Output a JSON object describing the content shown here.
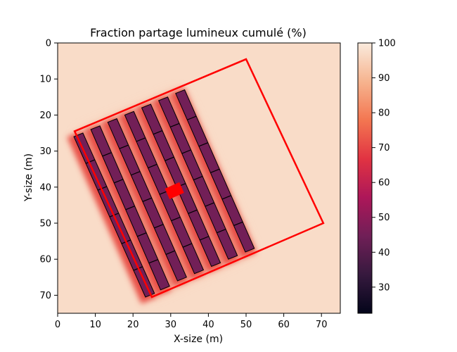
{
  "chart_data": {
    "type": "heatmap",
    "title": "Fraction partage lumineux cumulé (%)",
    "xlabel": "X-size (m)",
    "ylabel": "Y-size (m)",
    "xlim": [
      0,
      75
    ],
    "ylim": [
      75,
      0
    ],
    "x_ticks": [
      0,
      10,
      20,
      30,
      40,
      50,
      60,
      70
    ],
    "y_ticks": [
      0,
      10,
      20,
      30,
      40,
      50,
      60,
      70
    ],
    "colorbar": {
      "range": [
        22.5,
        100
      ],
      "ticks": [
        30,
        40,
        50,
        60,
        70,
        80,
        90,
        100
      ],
      "colormap": "rocket",
      "stops": [
        "#03051a",
        "#36193e",
        "#701f57",
        "#ad1759",
        "#e13342",
        "#f37651",
        "#f6b48f",
        "#faebdd"
      ]
    },
    "background_value": 97,
    "rows": {
      "count": 7,
      "value": 45,
      "bottom_ends": [
        [
          24.5,
          70
        ],
        [
          28.5,
          68
        ],
        [
          33,
          65.5
        ],
        [
          37.5,
          63.5
        ],
        [
          42,
          61.5
        ],
        [
          46.5,
          59.5
        ],
        [
          51,
          57.5
        ]
      ],
      "top_ends": [
        [
          5.5,
          25.5
        ],
        [
          10,
          23.5
        ],
        [
          14.5,
          21.5
        ],
        [
          19,
          19.5
        ],
        [
          23.5,
          17.5
        ],
        [
          28,
          15.5
        ],
        [
          32.5,
          13.5
        ]
      ],
      "panels_per_row": 6
    },
    "highlight": {
      "center": [
        31,
        41
      ],
      "color": "#ff0000"
    },
    "boundary": {
      "color": "#ff0000",
      "corners": [
        [
          4.5,
          24.5
        ],
        [
          50,
          4.5
        ],
        [
          70.5,
          50
        ],
        [
          25,
          70.5
        ]
      ]
    }
  }
}
